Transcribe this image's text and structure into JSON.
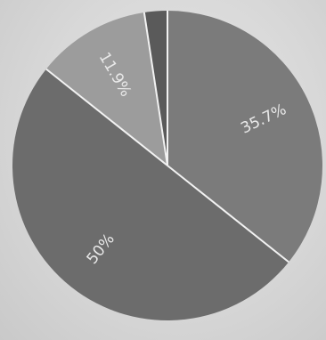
{
  "chart_data": {
    "type": "pie",
    "start_angle_deg": 0,
    "direction": "clockwise",
    "slices": [
      {
        "label": "35.7%",
        "value": 35.7,
        "color": "#7b7b7b"
      },
      {
        "label": "50%",
        "value": 50.0,
        "color": "#6c6c6c"
      },
      {
        "label": "11.9%",
        "value": 11.9,
        "color": "#9c9c9c"
      },
      {
        "label": "",
        "value": 2.4,
        "color": "#5a5a5a"
      }
    ],
    "label_color": "#e9e9e9",
    "separator_color": "#f2f2f2"
  }
}
